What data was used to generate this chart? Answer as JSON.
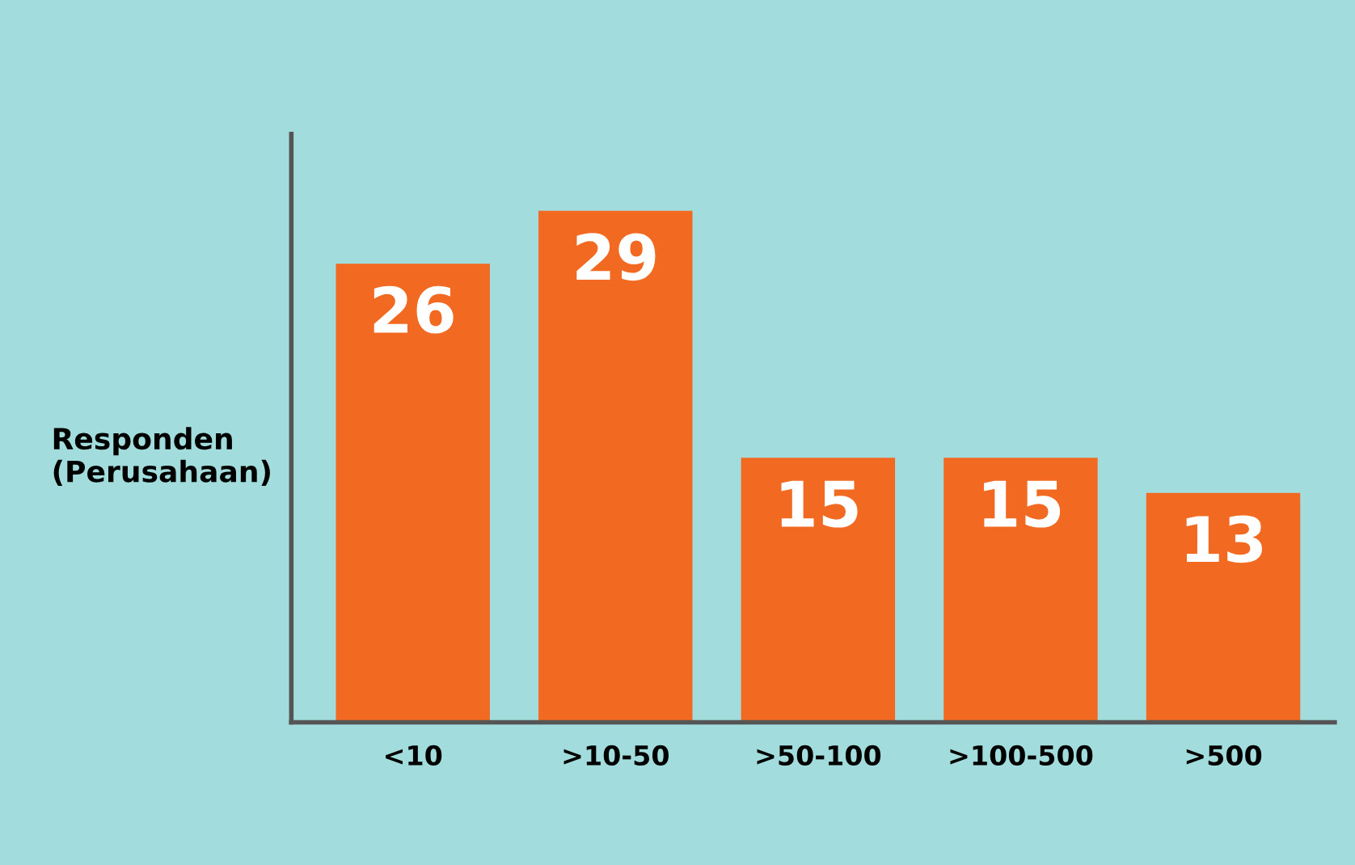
{
  "chart_data": {
    "type": "bar",
    "ylabel": "Responden\n(Perusahaan)",
    "categories": [
      "<10",
      ">10-50",
      ">50-100",
      ">100-500",
      ">500"
    ],
    "values": [
      26,
      29,
      15,
      15,
      13
    ],
    "color": "#f26a22",
    "data_labels": true,
    "grid": false
  }
}
